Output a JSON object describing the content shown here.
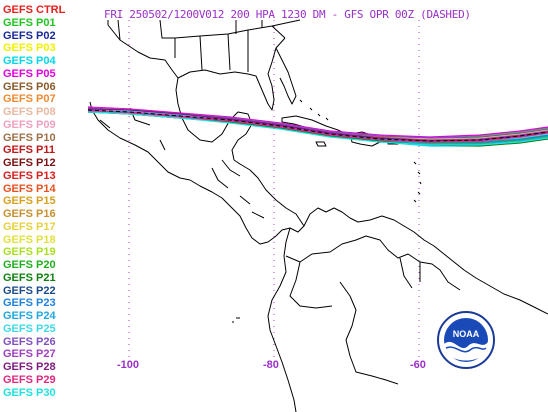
{
  "title": "FRI 250502/1200V012  200 HPA 1230 DM - GFS OPR 00Z (DASHED)",
  "legend": [
    {
      "label": "GEFS CTRL",
      "color": "#e8201a"
    },
    {
      "label": "GEFS P01",
      "color": "#22c422"
    },
    {
      "label": "GEFS P02",
      "color": "#1a2a9a"
    },
    {
      "label": "GEFS P03",
      "color": "#f0f000"
    },
    {
      "label": "GEFS P04",
      "color": "#00d8e8"
    },
    {
      "label": "GEFS P05",
      "color": "#e000e0"
    },
    {
      "label": "GEFS P06",
      "color": "#8a5a2a"
    },
    {
      "label": "GEFS P07",
      "color": "#f08a30"
    },
    {
      "label": "GEFS P08",
      "color": "#e8b8a0"
    },
    {
      "label": "GEFS P09",
      "color": "#f0a0c0"
    },
    {
      "label": "GEFS P10",
      "color": "#a07048"
    },
    {
      "label": "GEFS P11",
      "color": "#c01818"
    },
    {
      "label": "GEFS P12",
      "color": "#7a1010"
    },
    {
      "label": "GEFS P13",
      "color": "#d82020"
    },
    {
      "label": "GEFS P14",
      "color": "#e85020"
    },
    {
      "label": "GEFS P15",
      "color": "#d8a020"
    },
    {
      "label": "GEFS P16",
      "color": "#c89030"
    },
    {
      "label": "GEFS P17",
      "color": "#e8d040"
    },
    {
      "label": "GEFS P18",
      "color": "#e0e040"
    },
    {
      "label": "GEFS P19",
      "color": "#a8e020"
    },
    {
      "label": "GEFS P20",
      "color": "#20b020"
    },
    {
      "label": "GEFS P21",
      "color": "#108010"
    },
    {
      "label": "GEFS P22",
      "color": "#1a4a8a"
    },
    {
      "label": "GEFS P23",
      "color": "#2080e0"
    },
    {
      "label": "GEFS P24",
      "color": "#20a8e0"
    },
    {
      "label": "GEFS P25",
      "color": "#40d8e8"
    },
    {
      "label": "GEFS P26",
      "color": "#8050c0"
    },
    {
      "label": "GEFS P27",
      "color": "#a040c0"
    },
    {
      "label": "GEFS P28",
      "color": "#801a80"
    },
    {
      "label": "GEFS P29",
      "color": "#e02880"
    },
    {
      "label": "GEFS P30",
      "color": "#20e0e0"
    }
  ],
  "lon_labels": [
    "-100",
    "-80",
    "-60"
  ],
  "logo_text": "NOAA"
}
